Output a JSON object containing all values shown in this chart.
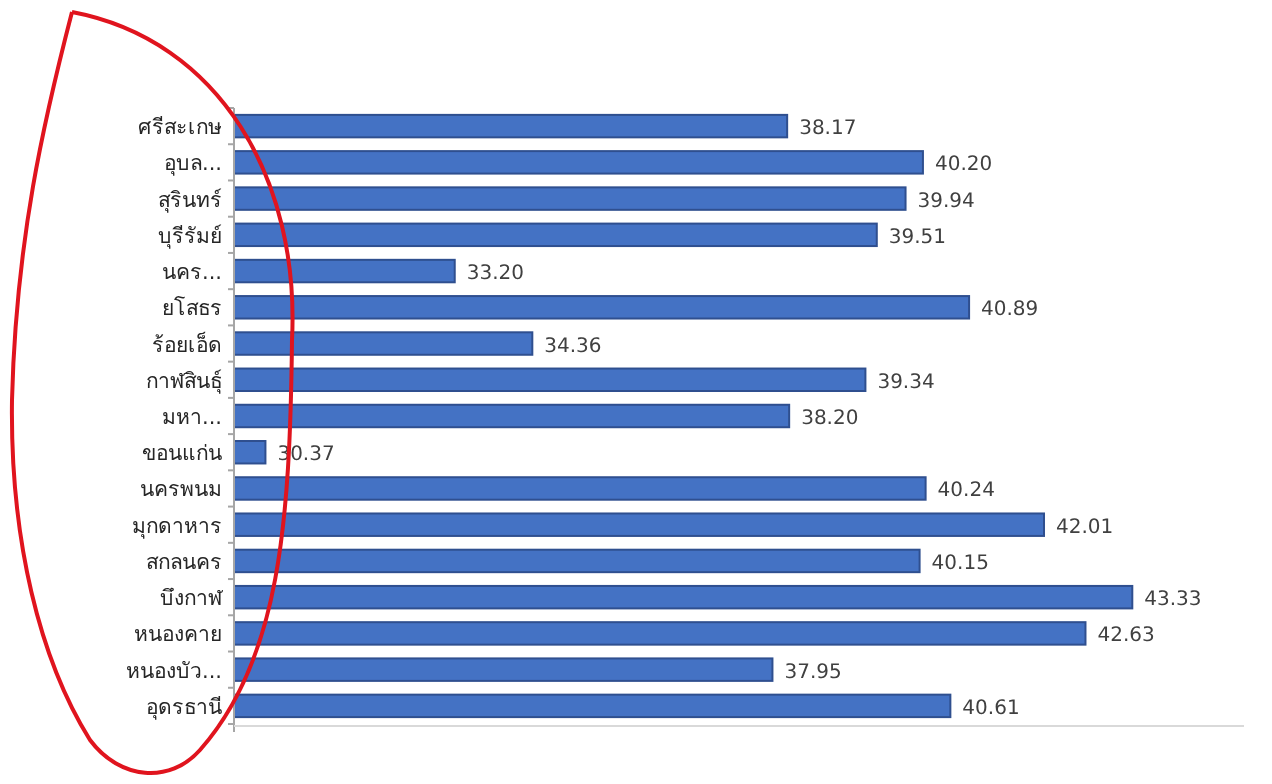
{
  "chart_data": {
    "type": "bar",
    "orientation": "horizontal",
    "categories": [
      "ศรีสะเกษ",
      "อุบล...",
      "สุรินทร์",
      "บุรีรัมย์",
      "นคร...",
      "ยโสธร",
      "ร้อยเอ็ด",
      "กาฬสินธุ์",
      "มหา...",
      "ขอนแก่น",
      "นครพนม",
      "มุกดาหาร",
      "สกลนคร",
      "บึงกาฬ",
      "หนองคาย",
      "หนองบัว...",
      "อุดรธานี"
    ],
    "values": [
      38.17,
      40.2,
      39.94,
      39.51,
      33.2,
      40.89,
      34.36,
      39.34,
      38.2,
      30.37,
      40.24,
      42.01,
      40.15,
      43.33,
      42.63,
      37.95,
      40.61
    ],
    "value_labels": [
      "38.17",
      "40.20",
      "39.94",
      "39.51",
      "33.20",
      "40.89",
      "34.36",
      "39.34",
      "38.20",
      "30.37",
      "40.24",
      "42.01",
      "40.15",
      "43.33",
      "42.63",
      "37.95",
      "40.61"
    ],
    "color": "#4472c4",
    "xlim": [
      29.9,
      45
    ],
    "tick_labels": "y"
  }
}
